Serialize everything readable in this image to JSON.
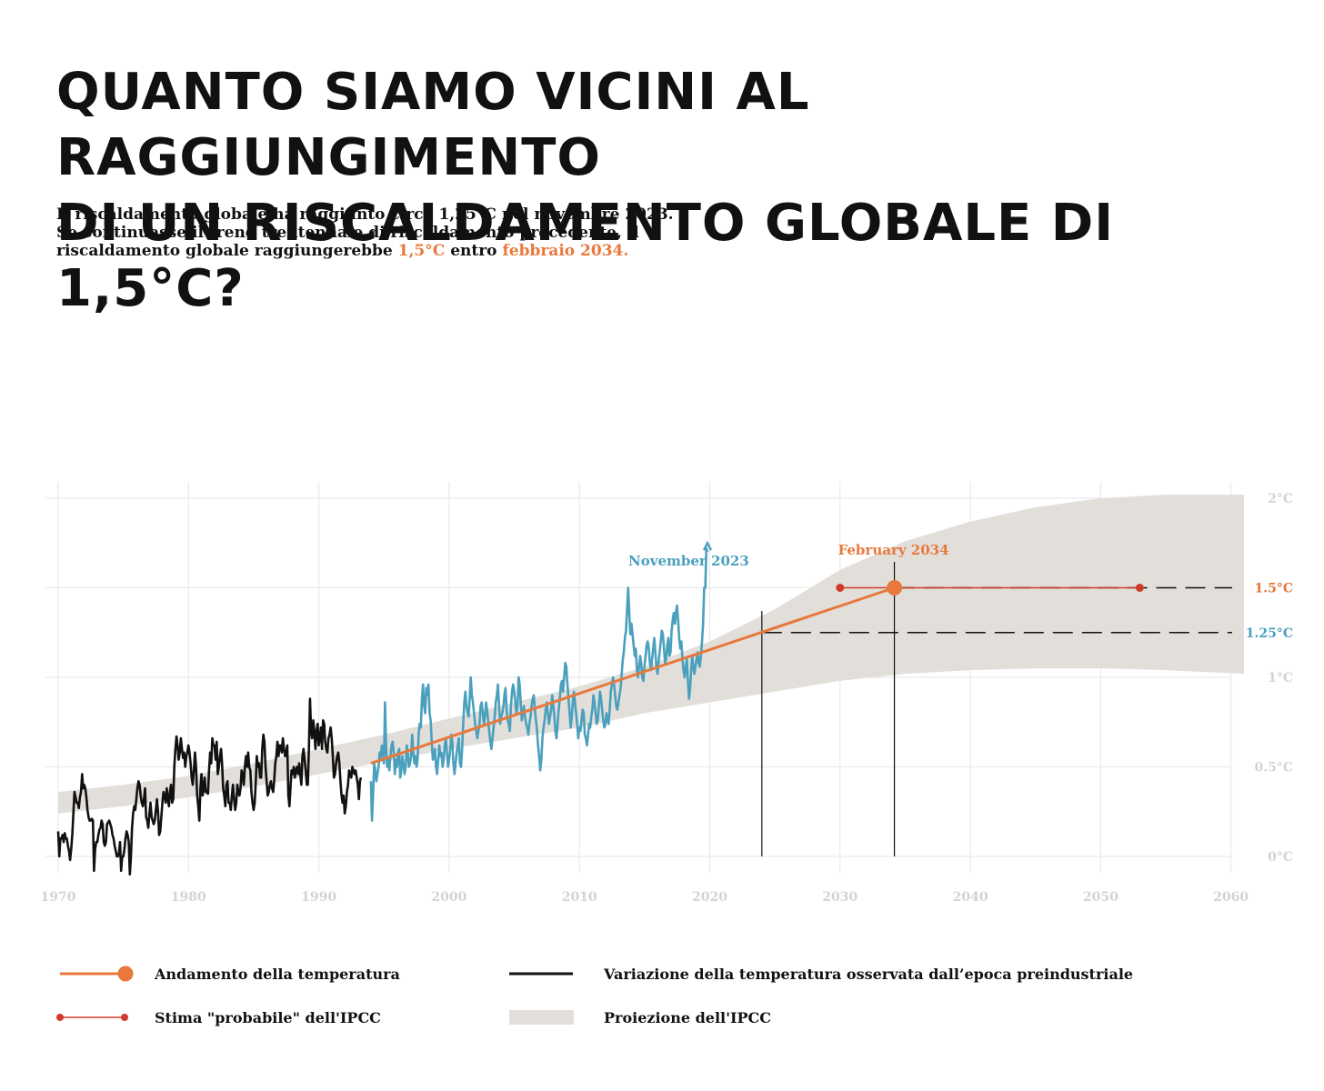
{
  "title_lines": [
    "QUANTO SIAMO VICINI AL RAGGIUNGIMENTO",
    "DI UN RISCALDAMENTO GLOBALE DI 1,5°C?"
  ],
  "subtitle": {
    "line1": "Il riscaldamento globale ha raggiunto circa 1,25°C nel novembre 2023.",
    "line2": "Se continuasse il trend trentennale di riscaldamento precedente, il",
    "line3_prefix": "riscaldamento globale raggiungerebbe ",
    "line3_value": "1,5°C",
    "line3_mid": " entro ",
    "line3_date": "febbraio 2034."
  },
  "colors": {
    "trend": "#e8783b",
    "observed": "#111111",
    "recent": "#4aa0bd",
    "ipcc_likely": "#d03a2a",
    "projection": "#e2dfdb",
    "axis_text": "#d6d3cf",
    "grid": "#e6e6e6"
  },
  "chart_data": {
    "type": "line",
    "x_ticks": [
      "1970",
      "1980",
      "1990",
      "2000",
      "2010",
      "2020",
      "2030",
      "2040",
      "2050",
      "2060"
    ],
    "y_ticks": [
      "0°C",
      "0.5°C",
      "1°C",
      "1.5°C",
      "2°C"
    ],
    "xlim": [
      1970,
      2061
    ],
    "ylim": [
      -0.08,
      2.08
    ],
    "observed_black": {
      "x_start": 1970.0,
      "step": 0.0833,
      "y": [
        0.14,
        0.0,
        0.1,
        0.1,
        0.12,
        0.08,
        0.13,
        0.1,
        0.1,
        0.06,
        0.03,
        -0.02,
        0.04,
        0.12,
        0.24,
        0.36,
        0.33,
        0.3,
        0.3,
        0.27,
        0.33,
        0.36,
        0.46,
        0.38,
        0.4,
        0.38,
        0.33,
        0.26,
        0.22,
        0.2,
        0.2,
        0.21,
        0.2,
        -0.08,
        0.04,
        0.08,
        0.08,
        0.12,
        0.15,
        0.16,
        0.2,
        0.18,
        0.08,
        0.06,
        0.08,
        0.18,
        0.19,
        0.2,
        0.18,
        0.16,
        0.12,
        0.1,
        0.06,
        0.03,
        0.0,
        0.0,
        0.02,
        0.08,
        -0.08,
        0.0,
        0.0,
        0.04,
        0.1,
        0.14,
        0.12,
        0.08,
        -0.1,
        0.0,
        0.16,
        0.24,
        0.28,
        0.26,
        0.32,
        0.38,
        0.42,
        0.4,
        0.34,
        0.3,
        0.28,
        0.32,
        0.38,
        0.22,
        0.2,
        0.16,
        0.24,
        0.3,
        0.22,
        0.2,
        0.18,
        0.2,
        0.26,
        0.32,
        0.25,
        0.12,
        0.14,
        0.22,
        0.3,
        0.36,
        0.34,
        0.3,
        0.38,
        0.32,
        0.28,
        0.36,
        0.4,
        0.3,
        0.32,
        0.5,
        0.6,
        0.67,
        0.62,
        0.54,
        0.58,
        0.66,
        0.6,
        0.55,
        0.58,
        0.5,
        0.56,
        0.58,
        0.62,
        0.58,
        0.52,
        0.44,
        0.4,
        0.48,
        0.58,
        0.5,
        0.34,
        0.28,
        0.2,
        0.38,
        0.46,
        0.34,
        0.38,
        0.44,
        0.36,
        0.36,
        0.35,
        0.48,
        0.58,
        0.52,
        0.66,
        0.62,
        0.62,
        0.54,
        0.64,
        0.46,
        0.5,
        0.56,
        0.6,
        0.52,
        0.38,
        0.34,
        0.28,
        0.4,
        0.42,
        0.3,
        0.3,
        0.26,
        0.34,
        0.4,
        0.32,
        0.26,
        0.3,
        0.4,
        0.36,
        0.34,
        0.38,
        0.48,
        0.46,
        0.4,
        0.5,
        0.56,
        0.5,
        0.58,
        0.5,
        0.48,
        0.36,
        0.3,
        0.26,
        0.3,
        0.42,
        0.56,
        0.5,
        0.52,
        0.44,
        0.44,
        0.6,
        0.68,
        0.64,
        0.5,
        0.42,
        0.34,
        0.36,
        0.4,
        0.42,
        0.38,
        0.36,
        0.42,
        0.52,
        0.56,
        0.64,
        0.56,
        0.62,
        0.62,
        0.58,
        0.66,
        0.6,
        0.56,
        0.58,
        0.62,
        0.34,
        0.28,
        0.38,
        0.48,
        0.46,
        0.5,
        0.44,
        0.48,
        0.5,
        0.46,
        0.52,
        0.46,
        0.4,
        0.56,
        0.6,
        0.54,
        0.48,
        0.4,
        0.4,
        0.6,
        0.88,
        0.7,
        0.66,
        0.76,
        0.7,
        0.6,
        0.7,
        0.74,
        0.62,
        0.66,
        0.72,
        0.6,
        0.76,
        0.74,
        0.64,
        0.6,
        0.58,
        0.66,
        0.68,
        0.72,
        0.66,
        0.56,
        0.44,
        0.46,
        0.52,
        0.56,
        0.58,
        0.52,
        0.42,
        0.34,
        0.3,
        0.34,
        0.24,
        0.28,
        0.36,
        0.4,
        0.48,
        0.46,
        0.44,
        0.5,
        0.48,
        0.46,
        0.48,
        0.44,
        0.4,
        0.32,
        0.42,
        0.44
      ]
    },
    "observed_blue": {
      "x_start": 1994.0,
      "step": 0.0833,
      "y": [
        0.42,
        0.2,
        0.35,
        0.52,
        0.48,
        0.42,
        0.46,
        0.5,
        0.58,
        0.55,
        0.62,
        0.6,
        0.52,
        0.86,
        0.62,
        0.5,
        0.54,
        0.48,
        0.56,
        0.62,
        0.64,
        0.58,
        0.46,
        0.54,
        0.5,
        0.58,
        0.6,
        0.44,
        0.48,
        0.56,
        0.52,
        0.46,
        0.5,
        0.62,
        0.58,
        0.5,
        0.52,
        0.56,
        0.68,
        0.58,
        0.52,
        0.56,
        0.5,
        0.54,
        0.68,
        0.74,
        0.72,
        0.88,
        0.96,
        0.84,
        0.8,
        0.94,
        0.9,
        0.96,
        0.8,
        0.76,
        0.64,
        0.54,
        0.56,
        0.6,
        0.5,
        0.46,
        0.54,
        0.62,
        0.56,
        0.58,
        0.5,
        0.54,
        0.62,
        0.66,
        0.58,
        0.5,
        0.54,
        0.6,
        0.68,
        0.64,
        0.52,
        0.46,
        0.52,
        0.58,
        0.62,
        0.66,
        0.52,
        0.5,
        0.6,
        0.74,
        0.86,
        0.92,
        0.84,
        0.8,
        0.78,
        0.88,
        1.0,
        0.9,
        0.86,
        0.8,
        0.74,
        0.7,
        0.66,
        0.7,
        0.74,
        0.84,
        0.86,
        0.8,
        0.74,
        0.78,
        0.86,
        0.82,
        0.76,
        0.7,
        0.64,
        0.6,
        0.66,
        0.72,
        0.78,
        0.86,
        0.9,
        0.96,
        0.84,
        0.74,
        0.78,
        0.8,
        0.84,
        0.9,
        0.94,
        0.82,
        0.76,
        0.74,
        0.7,
        0.84,
        0.92,
        0.96,
        0.92,
        0.86,
        0.8,
        0.84,
        1.0,
        0.96,
        0.86,
        0.76,
        0.8,
        0.84,
        0.78,
        0.74,
        0.72,
        0.68,
        0.74,
        0.78,
        0.84,
        0.88,
        0.9,
        0.82,
        0.76,
        0.7,
        0.62,
        0.56,
        0.48,
        0.54,
        0.66,
        0.72,
        0.76,
        0.82,
        0.86,
        0.8,
        0.74,
        0.78,
        0.82,
        0.9,
        0.84,
        0.78,
        0.7,
        0.66,
        0.74,
        0.82,
        0.88,
        0.96,
        0.98,
        0.92,
        1.0,
        1.08,
        1.06,
        0.96,
        0.88,
        0.8,
        0.72,
        0.78,
        0.86,
        0.92,
        0.86,
        0.8,
        0.74,
        0.66,
        0.72,
        0.7,
        0.76,
        0.82,
        0.8,
        0.68,
        0.66,
        0.62,
        0.68,
        0.74,
        0.72,
        0.78,
        0.82,
        0.9,
        0.86,
        0.8,
        0.74,
        0.76,
        0.84,
        0.92,
        0.88,
        0.82,
        0.76,
        0.72,
        0.74,
        0.8,
        0.76,
        0.74,
        0.82,
        0.92,
        0.96,
        1.0,
        0.96,
        0.9,
        0.84,
        0.82,
        0.86,
        0.9,
        0.94,
        1.02,
        1.1,
        1.14,
        1.22,
        1.26,
        1.38,
        1.5,
        1.36,
        1.24,
        1.3,
        1.24,
        1.18,
        1.12,
        1.16,
        1.04,
        1.0,
        1.06,
        1.12,
        1.08,
        1.0,
        0.98,
        1.06,
        1.12,
        1.18,
        1.2,
        1.16,
        1.08,
        1.04,
        1.1,
        1.16,
        1.22,
        1.14,
        1.06,
        1.02,
        1.08,
        1.14,
        1.2,
        1.26,
        1.24,
        1.16,
        1.08,
        1.1,
        1.18,
        1.22,
        1.12,
        1.14,
        1.26,
        1.32,
        1.36,
        1.3,
        1.36,
        1.4,
        1.32,
        1.22,
        1.16,
        1.2,
        1.1,
        1.04,
        1.0,
        1.06,
        1.1,
        0.98,
        0.88,
        0.94,
        1.04,
        1.12,
        1.06,
        1.02,
        1.06,
        1.1,
        1.14,
        1.08,
        1.06,
        1.12,
        1.2,
        1.3,
        1.5,
        1.5,
        1.72,
        1.7
      ]
    },
    "trend": {
      "x": [
        1994.0,
        2034.17
      ],
      "y": [
        0.52,
        1.5
      ]
    },
    "trend_endpoint": {
      "x": 2034.17,
      "y": 1.5
    },
    "ipcc_likely": {
      "x": [
        2030.0,
        2053.0
      ],
      "y": 1.5
    },
    "projection_band": {
      "x": [
        1970,
        1975,
        1980,
        1985,
        1990,
        1995,
        2000,
        2005,
        2010,
        2015,
        2020,
        2025,
        2030,
        2035,
        2040,
        2045,
        2050,
        2055,
        2061
      ],
      "upper": [
        0.36,
        0.4,
        0.45,
        0.52,
        0.6,
        0.68,
        0.77,
        0.86,
        0.95,
        1.06,
        1.2,
        1.38,
        1.6,
        1.76,
        1.87,
        1.95,
        2.0,
        2.02,
        2.02
      ],
      "lower": [
        0.24,
        0.28,
        0.33,
        0.39,
        0.46,
        0.53,
        0.6,
        0.66,
        0.72,
        0.8,
        0.86,
        0.92,
        0.98,
        1.02,
        1.04,
        1.05,
        1.05,
        1.04,
        1.02
      ]
    },
    "reference_lines": [
      {
        "y": 1.5,
        "label": "1.5°C"
      },
      {
        "y": 1.25,
        "label": "1.25°C"
      }
    ],
    "markers": [
      {
        "x": 2024.0,
        "label": "November 2023"
      },
      {
        "x": 2034.17,
        "label": "February 2034"
      }
    ],
    "legend": [
      {
        "label": "Andamento della temperatura",
        "kind": "trend"
      },
      {
        "label": "Variazione della temperatura osservata dall’epoca preindustriale",
        "kind": "observed"
      },
      {
        "label": "Stima \"probabile\" dell'IPCC",
        "kind": "ipcc_likely"
      },
      {
        "label": "Proiezione dell'IPCC",
        "kind": "projection"
      }
    ]
  }
}
